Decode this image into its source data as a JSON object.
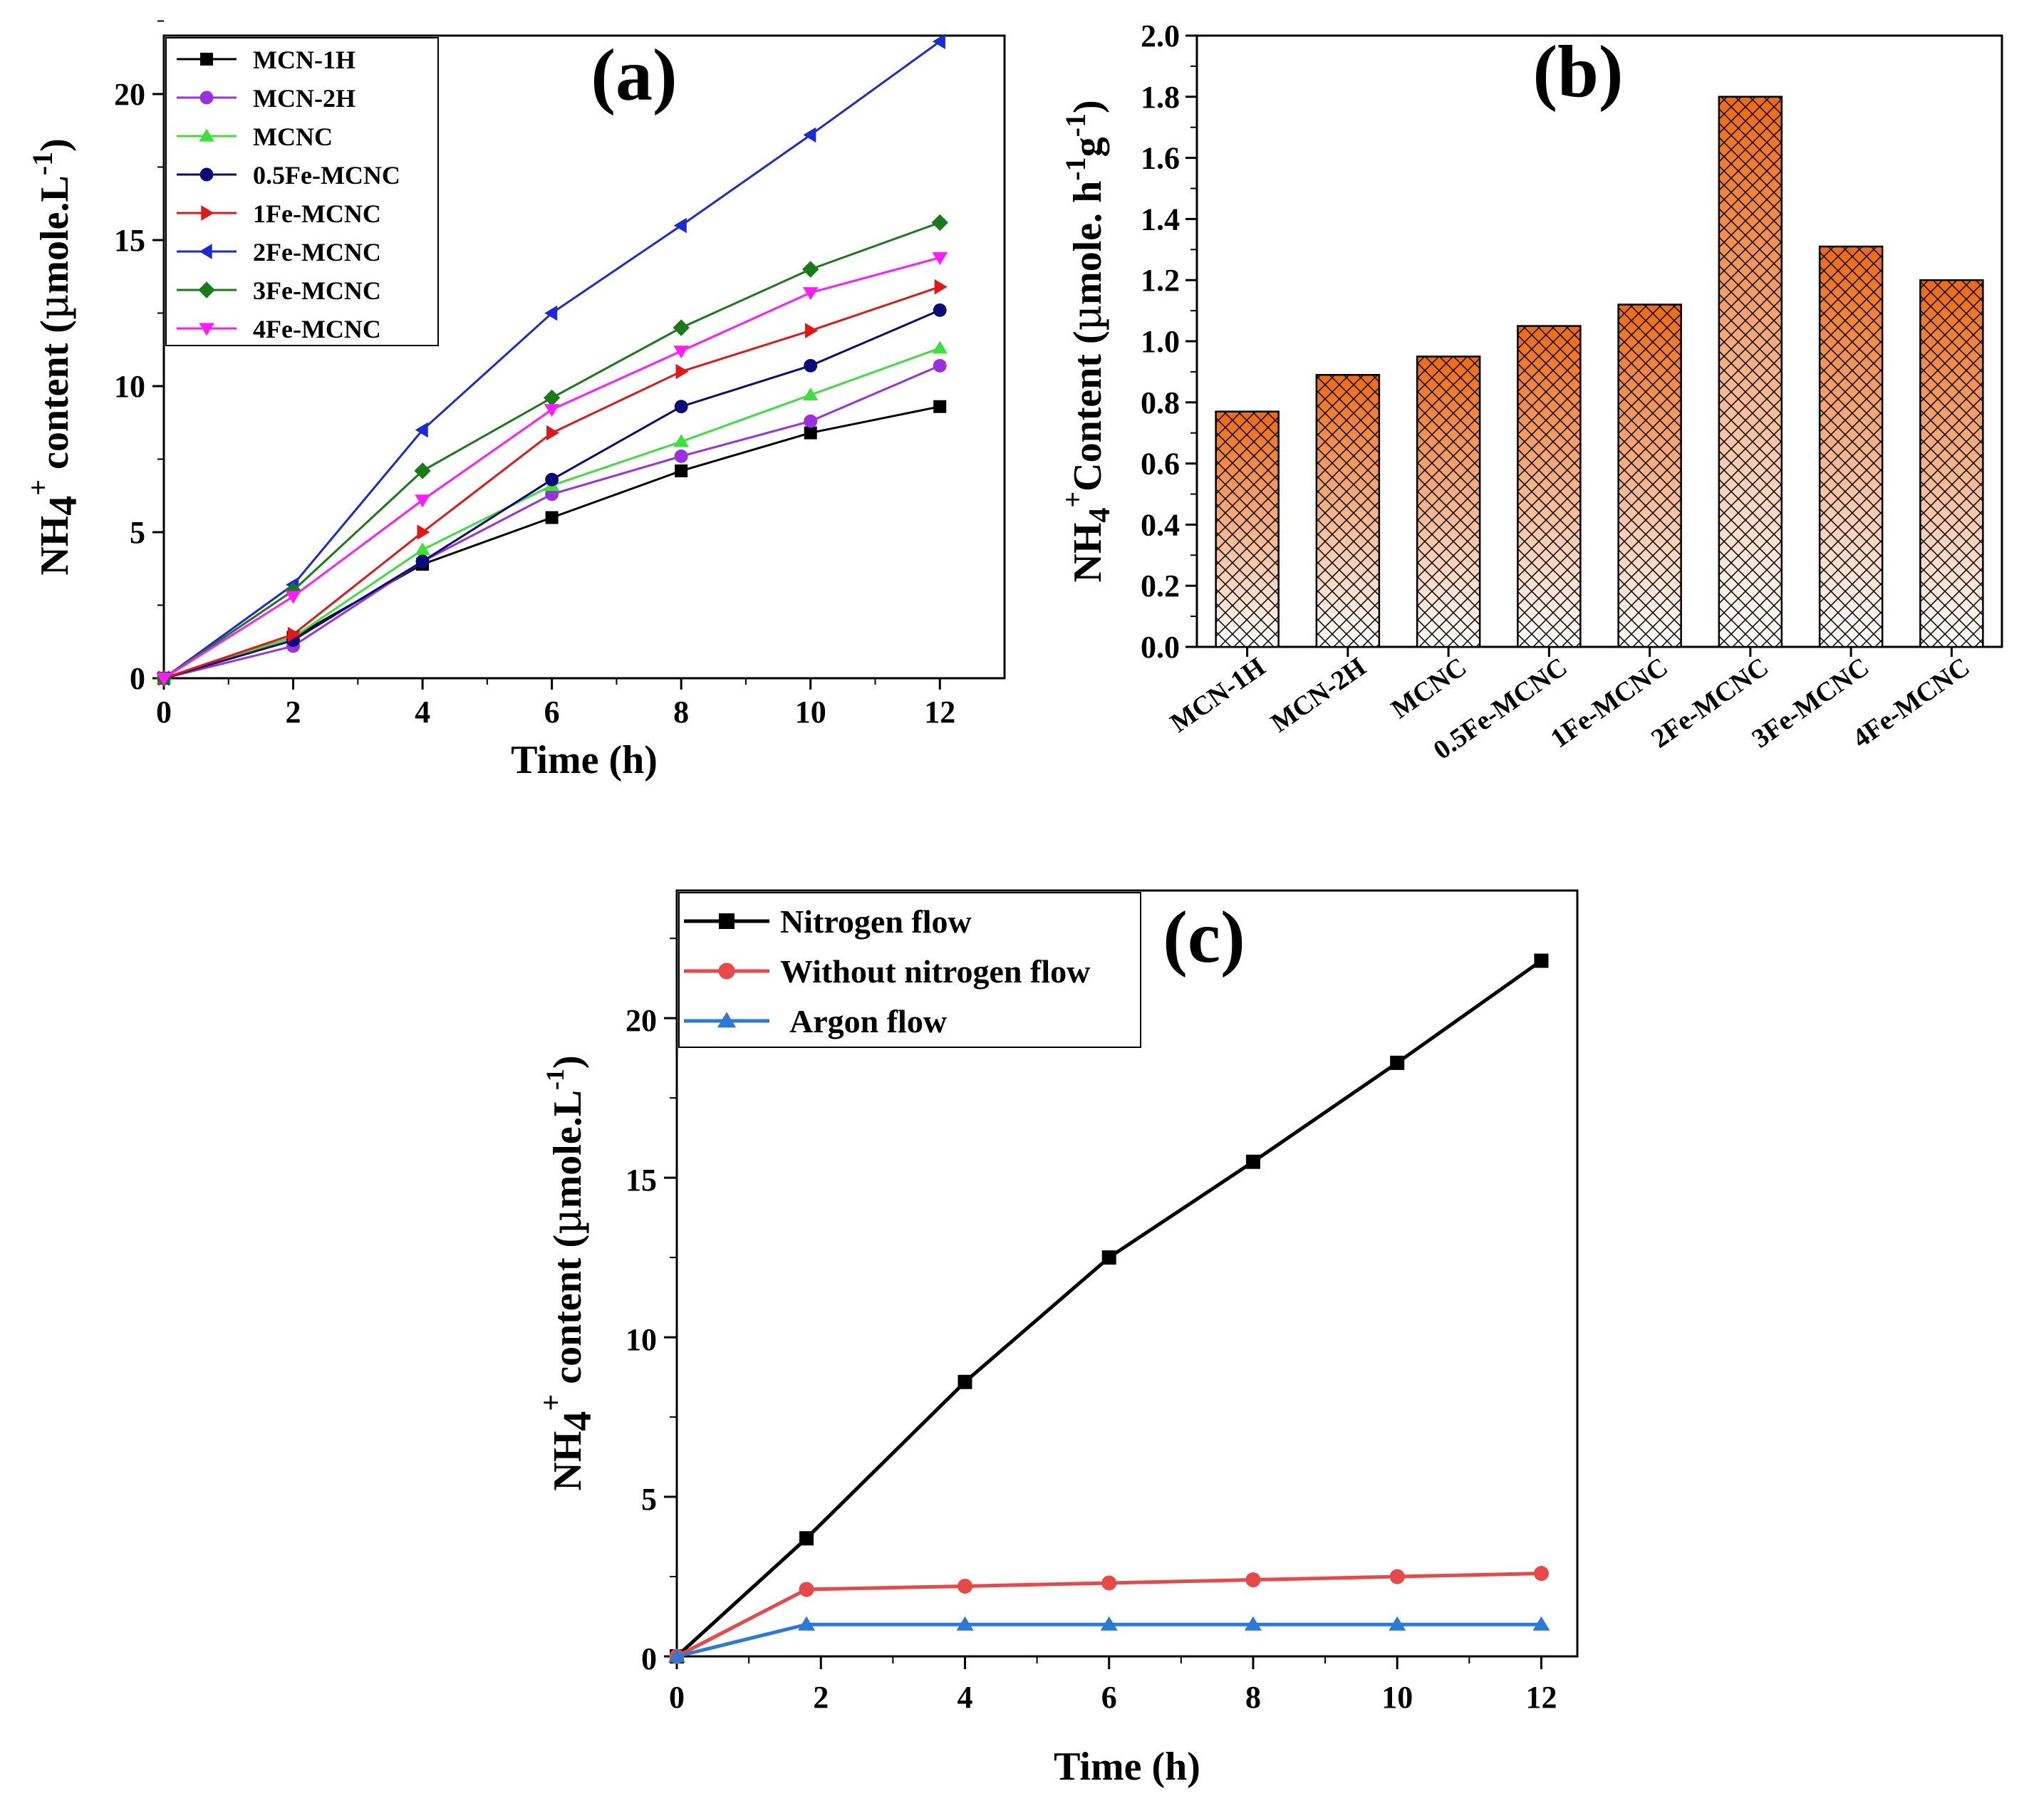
{
  "chart_data": [
    {
      "type": "line",
      "panel_label": "(a)",
      "xlabel": "Time (h)",
      "ylabel_parts": [
        "NH",
        "4",
        "+",
        " content (",
        "µ",
        "mole.L",
        "-1",
        ")"
      ],
      "x": [
        0,
        2,
        4,
        6,
        8,
        10,
        12
      ],
      "xlim": [
        0,
        13
      ],
      "ylim": [
        0,
        22
      ],
      "xticks": [
        0,
        2,
        4,
        6,
        8,
        10,
        12
      ],
      "yticks": [
        0,
        5,
        10,
        15,
        20
      ],
      "legend_position": "top-left",
      "series": [
        {
          "name": "MCN-1H",
          "color": "#000000",
          "marker": "square",
          "values": [
            0,
            1.4,
            3.9,
            5.5,
            7.1,
            8.4,
            9.3
          ]
        },
        {
          "name": "MCN-2H",
          "color": "#9b30e0",
          "marker": "circle",
          "values": [
            0,
            1.1,
            4.0,
            6.3,
            7.6,
            8.8,
            10.7
          ]
        },
        {
          "name": "MCNC",
          "color": "#3ee03e",
          "marker": "triangle-up",
          "values": [
            0,
            1.4,
            4.4,
            6.6,
            8.1,
            9.7,
            11.3
          ]
        },
        {
          "name": "0.5Fe-MCNC",
          "color": "#0a0a7a",
          "marker": "circle",
          "values": [
            0,
            1.3,
            4.0,
            6.8,
            9.3,
            10.7,
            12.6
          ]
        },
        {
          "name": "1Fe-MCNC",
          "color": "#e01818",
          "marker": "triangle-right",
          "values": [
            0,
            1.5,
            5.0,
            8.4,
            10.5,
            11.9,
            13.4
          ]
        },
        {
          "name": "2Fe-MCNC",
          "color": "#1a2ad6",
          "marker": "triangle-left",
          "values": [
            0,
            3.2,
            8.5,
            12.5,
            15.5,
            18.6,
            21.8
          ]
        },
        {
          "name": "3Fe-MCNC",
          "color": "#1a7a1a",
          "marker": "diamond",
          "values": [
            0,
            3.0,
            7.1,
            9.6,
            12.0,
            14.0,
            15.6
          ]
        },
        {
          "name": "4Fe-MCNC",
          "color": "#ff1aff",
          "marker": "triangle-down",
          "values": [
            0,
            2.8,
            6.1,
            9.2,
            11.2,
            13.2,
            14.4
          ]
        }
      ]
    },
    {
      "type": "bar",
      "panel_label": "(b)",
      "ylabel_parts": [
        "NH",
        "4",
        "+",
        "Content (",
        "µ",
        "mole. h",
        "-1",
        "g",
        "-1",
        ")"
      ],
      "categories": [
        "MCN-1H",
        "MCN-2H",
        "MCNC",
        "0.5Fe-MCNC",
        "1Fe-MCNC",
        "2Fe-MCNC",
        "3Fe-MCNC",
        "4Fe-MCNC"
      ],
      "values": [
        0.77,
        0.89,
        0.95,
        1.05,
        1.12,
        1.8,
        1.31,
        1.2
      ],
      "ylim": [
        0,
        2.0
      ],
      "yticks": [
        "0.0",
        "0.2",
        "0.4",
        "0.6",
        "0.8",
        "1.0",
        "1.2",
        "1.4",
        "1.6",
        "1.8",
        "2.0"
      ],
      "bar_color_top": "#ee6a12",
      "bar_color_bottom": "#ffffff"
    },
    {
      "type": "line",
      "panel_label": "(c)",
      "xlabel": "Time (h)",
      "ylabel_parts": [
        "NH",
        "4",
        "+",
        " content (",
        "µ",
        "mole.L",
        "-1",
        ")"
      ],
      "xlim": [
        0,
        12.5
      ],
      "ylim": [
        0,
        24
      ],
      "xticks": [
        0,
        2,
        4,
        6,
        8,
        10,
        12
      ],
      "yticks": [
        0,
        5,
        10,
        15,
        20
      ],
      "legend_position": "top-left",
      "series": [
        {
          "name": "Nitrogen flow",
          "color": "#000000",
          "marker": "square",
          "x": [
            0,
            1.8,
            4,
            6,
            8,
            10,
            12
          ],
          "values": [
            0,
            3.7,
            8.6,
            12.5,
            15.5,
            18.6,
            21.8
          ]
        },
        {
          "name": "Without nitrogen flow",
          "color": "#e84848",
          "marker": "circle",
          "x": [
            0,
            1.8,
            4,
            6,
            8,
            10,
            12
          ],
          "values": [
            0,
            2.1,
            2.2,
            2.3,
            2.4,
            2.5,
            2.6
          ]
        },
        {
          "name": "Argon flow",
          "color": "#2a7ad6",
          "marker": "triangle-up",
          "x": [
            0,
            1.8,
            4,
            6,
            8,
            10,
            12
          ],
          "values": [
            0,
            1.0,
            1.0,
            1.0,
            1.0,
            1.0,
            1.0
          ]
        }
      ]
    }
  ]
}
